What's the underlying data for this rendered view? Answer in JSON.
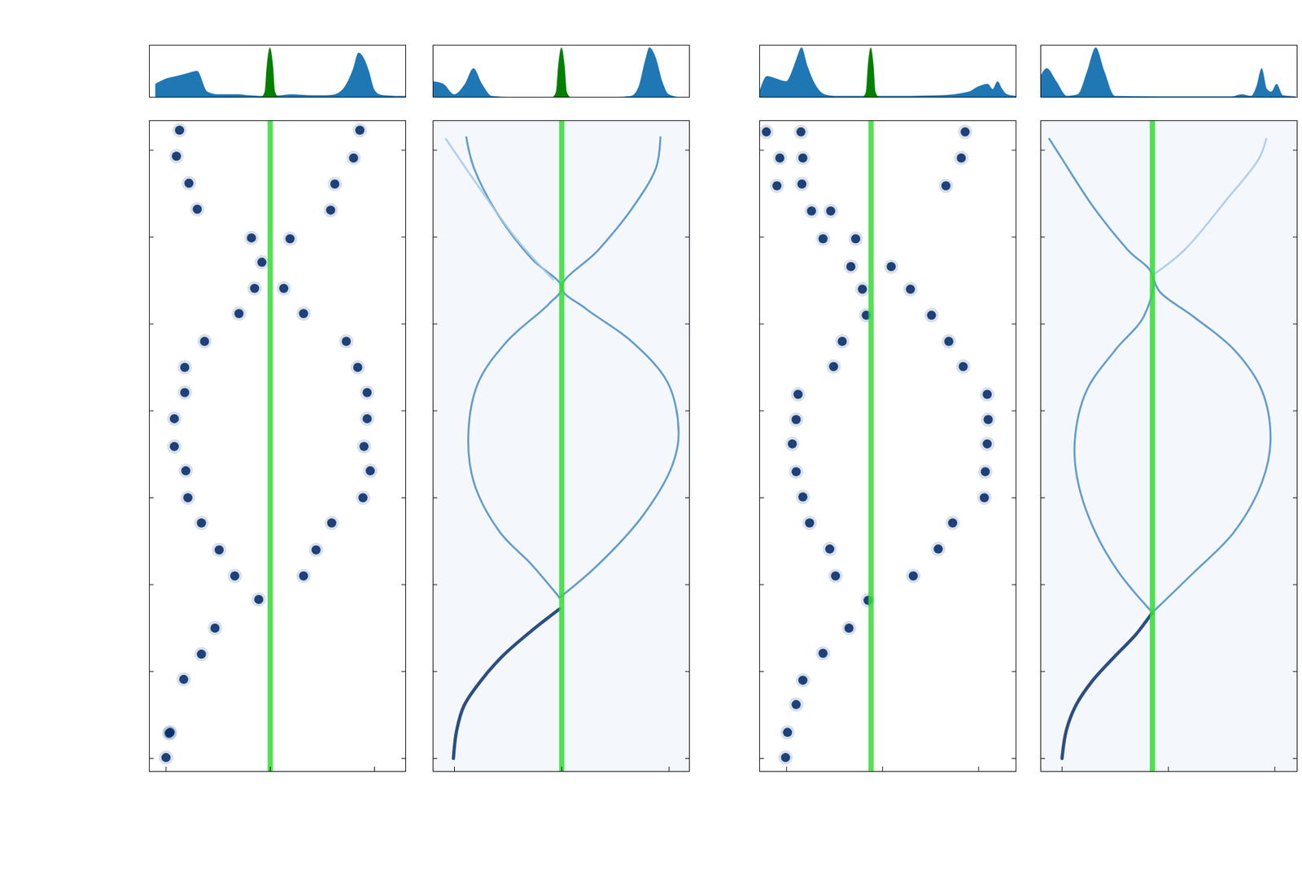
{
  "chart_data": [
    {
      "type": "area",
      "xlim": [
        -1.16,
        1.3
      ],
      "ylim": [
        0,
        1
      ],
      "tick_labels": false,
      "series": [
        {
          "color": "#1f77b4",
          "x": [
            -1.1,
            -1.0,
            -0.9,
            -0.8,
            -0.7,
            -0.6,
            -0.5,
            -0.4,
            -0.3,
            -0.2,
            -0.1,
            0,
            0.1,
            0.2,
            0.3,
            0.4,
            0.5,
            0.6,
            0.7,
            0.8,
            0.85,
            0.9,
            0.95,
            1.0,
            1.05,
            1.1,
            1.2,
            1.3
          ],
          "values": [
            0.25,
            0.35,
            0.4,
            0.45,
            0.5,
            0.1,
            0.05,
            0.05,
            0.05,
            0.03,
            0.02,
            0.02,
            0.03,
            0.05,
            0.04,
            0.03,
            0.03,
            0.04,
            0.15,
            0.55,
            0.85,
            0.75,
            0.5,
            0.15,
            0.05,
            0.03,
            0.02,
            0.02
          ]
        },
        {
          "color": "#008000",
          "x": [
            -0.08,
            -0.05,
            -0.03,
            0,
            0.03,
            0.05,
            0.08
          ],
          "values": [
            0,
            0.1,
            0.6,
            0.95,
            0.6,
            0.1,
            0
          ]
        }
      ]
    },
    {
      "type": "scatter",
      "xlim": [
        -1.16,
        1.3
      ],
      "ylim": [
        -0.15,
        7.34
      ],
      "xticks": [
        -1,
        0,
        1
      ],
      "yticks": [
        0,
        1,
        2,
        3,
        4,
        5,
        6,
        7
      ],
      "tick_labels": false,
      "color": "#08306b",
      "barrier_x": 0,
      "barrier_color": "#33dd33",
      "x": [
        -1.0,
        -0.97,
        -0.96,
        -0.83,
        -0.66,
        -0.53,
        -0.11,
        -0.34,
        -0.49,
        -0.66,
        -0.79,
        -0.81,
        -0.92,
        -0.92,
        -0.82,
        -0.82,
        -0.63,
        -0.3,
        -0.15,
        -0.08,
        -0.18,
        0.19,
        0.13,
        0.32,
        0.32,
        0.44,
        0.59,
        0.89,
        0.96,
        0.9,
        0.93,
        0.93,
        0.84,
        0.73,
        0.58,
        0.62,
        0.8,
        0.86,
        -0.7,
        -0.78,
        -0.87,
        -0.9
      ],
      "y": [
        0.01,
        0.29,
        0.3,
        0.91,
        1.2,
        1.5,
        1.83,
        2.1,
        2.4,
        2.71,
        3.0,
        3.31,
        3.59,
        3.91,
        4.21,
        4.5,
        4.8,
        5.12,
        5.41,
        5.71,
        5.99,
        5.98,
        5.41,
        5.12,
        2.1,
        2.4,
        2.71,
        3.0,
        3.31,
        3.59,
        3.91,
        4.21,
        4.5,
        4.8,
        6.31,
        6.61,
        6.91,
        7.23,
        6.32,
        6.62,
        7.23,
        6.93
      ]
    },
    {
      "type": "area",
      "xlim": [
        -1.2,
        1.19
      ],
      "ylim": [
        0,
        1
      ],
      "tick_labels": false,
      "series": [
        {
          "color": "#1f77b4",
          "x": [
            -1.2,
            -1.1,
            -1.0,
            -0.9,
            -0.82,
            -0.74,
            -0.65,
            -0.5,
            0.5,
            0.65,
            0.72,
            0.78,
            0.82,
            0.88,
            0.94,
            1.0,
            1.1,
            1.19
          ],
          "values": [
            0.3,
            0.25,
            0.05,
            0.25,
            0.55,
            0.25,
            0.02,
            0,
            0,
            0.02,
            0.2,
            0.7,
            0.95,
            0.75,
            0.3,
            0.05,
            0,
            0
          ]
        },
        {
          "color": "#008000",
          "x": [
            -0.08,
            -0.05,
            -0.03,
            0,
            0.03,
            0.05,
            0.08
          ],
          "values": [
            0,
            0.1,
            0.6,
            0.95,
            0.6,
            0.1,
            0
          ]
        }
      ]
    },
    {
      "type": "line",
      "xlim": [
        -1.2,
        1.19
      ],
      "ylim": [
        -0.15,
        7.34
      ],
      "xticks": [
        -1,
        0,
        1
      ],
      "yticks": [
        0,
        1,
        2,
        3,
        4,
        5,
        6,
        7
      ],
      "tick_labels": false,
      "barrier_x": 0,
      "barrier_color": "#33dd33",
      "series": [
        {
          "color": "#08306b",
          "x": [
            -1.01,
            -0.98,
            -0.91,
            -0.75,
            -0.55,
            -0.28,
            -0.02
          ],
          "values": [
            0,
            0.32,
            0.61,
            0.9,
            1.18,
            1.47,
            1.72
          ]
        },
        {
          "color": "#4a8cc4",
          "x": [
            -0.02,
            -0.28,
            -0.58,
            -0.82,
            -0.87,
            -0.78,
            -0.51,
            -0.12,
            0,
            -0.28,
            -0.58,
            -0.82,
            -0.89
          ],
          "values": [
            1.85,
            2.23,
            2.61,
            3.18,
            3.75,
            4.32,
            4.8,
            5.23,
            5.42,
            5.75,
            6.23,
            6.8,
            7.15
          ]
        },
        {
          "color": "#4a8cc4",
          "x": [
            -0.02,
            0.34,
            0.76,
            1.03,
            1.09,
            0.99,
            0.65,
            0.22,
            0,
            0.34,
            0.65,
            0.88,
            0.92
          ],
          "values": [
            1.85,
            2.23,
            2.8,
            3.37,
            3.75,
            4.32,
            4.8,
            5.18,
            5.42,
            5.85,
            6.32,
            6.8,
            7.15
          ]
        },
        {
          "color": "#a6c8e6",
          "x": [
            -0.08,
            -0.43,
            -0.82,
            -1.08
          ],
          "values": [
            5.51,
            5.99,
            6.66,
            7.13
          ]
        }
      ]
    },
    {
      "type": "area",
      "xlim": [
        -1.28,
        1.39
      ],
      "ylim": [
        0,
        1
      ],
      "tick_labels": false,
      "series": [
        {
          "color": "#1f77b4",
          "x": [
            -1.28,
            -1.2,
            -1.1,
            -1.0,
            -0.95,
            -0.9,
            -0.84,
            -0.78,
            -0.7,
            -0.6,
            -0.5,
            -0.3,
            0,
            0.3,
            0.6,
            0.9,
            1.0,
            1.1,
            1.15,
            1.2,
            1.25,
            1.3,
            1.39
          ],
          "values": [
            0.1,
            0.4,
            0.35,
            0.3,
            0.45,
            0.7,
            0.95,
            0.6,
            0.25,
            0.05,
            0.02,
            0.02,
            0.02,
            0.02,
            0.03,
            0.1,
            0.2,
            0.25,
            0.15,
            0.3,
            0.15,
            0.05,
            0.02
          ]
        },
        {
          "color": "#008000",
          "x": [
            -0.2,
            -0.17,
            -0.15,
            -0.12,
            -0.09,
            -0.07,
            -0.04
          ],
          "values": [
            0,
            0.1,
            0.6,
            0.95,
            0.6,
            0.1,
            0
          ]
        }
      ]
    },
    {
      "type": "scatter",
      "xlim": [
        -1.28,
        1.39
      ],
      "ylim": [
        -0.15,
        7.34
      ],
      "xticks": [
        -1,
        0,
        1
      ],
      "yticks": [
        0,
        1,
        2,
        3,
        4,
        5,
        6,
        7
      ],
      "tick_labels": false,
      "color": "#08306b",
      "barrier_x": -0.12,
      "barrier_color": "#33dd33",
      "x": [
        -1.01,
        -0.99,
        -0.9,
        -0.83,
        -0.62,
        -0.35,
        -0.15,
        -0.49,
        -0.55,
        -0.76,
        -0.83,
        -0.9,
        -0.94,
        -0.9,
        -0.88,
        -0.51,
        -0.42,
        -0.17,
        -0.21,
        -0.33,
        -0.62,
        -0.74,
        -0.84,
        -0.83,
        -0.85,
        -1.21,
        0.32,
        0.58,
        0.73,
        1.06,
        1.07,
        1.09,
        1.1,
        1.09,
        0.84,
        0.69,
        0.51,
        0.29,
        0.09,
        -0.28,
        0.66,
        0.82,
        0.86,
        -0.54,
        -1.07,
        -1.1
      ],
      "y": [
        0.01,
        0.3,
        0.62,
        0.9,
        1.21,
        1.5,
        1.82,
        2.1,
        2.41,
        2.71,
        3.01,
        3.3,
        3.62,
        3.9,
        4.19,
        4.51,
        4.8,
        5.1,
        5.4,
        5.66,
        5.98,
        6.3,
        6.61,
        6.91,
        7.21,
        7.21,
        2.1,
        2.41,
        2.71,
        3.0,
        3.3,
        3.62,
        3.9,
        4.19,
        4.51,
        4.8,
        5.1,
        5.4,
        5.66,
        5.98,
        6.59,
        6.91,
        7.21,
        6.3,
        6.91,
        6.59
      ]
    },
    {
      "type": "area",
      "xlim": [
        -1.2,
        1.21
      ],
      "ylim": [
        0,
        1
      ],
      "tick_labels": false,
      "series": [
        {
          "color": "#1f77b4",
          "x": [
            -1.2,
            -1.14,
            -1.05,
            -0.95,
            -0.85,
            -0.76,
            -0.68,
            -0.6,
            -0.5,
            0,
            0.6,
            0.69,
            0.78,
            0.83,
            0.88,
            0.93,
            0.97,
            1.02,
            1.08,
            1.2
          ],
          "values": [
            0.4,
            0.55,
            0.3,
            0.02,
            0.05,
            0.5,
            0.95,
            0.5,
            0.02,
            0.01,
            0.01,
            0.05,
            0.02,
            0.2,
            0.55,
            0.15,
            0.1,
            0.25,
            0.03,
            0.01
          ]
        }
      ]
    },
    {
      "type": "line",
      "xlim": [
        -1.2,
        1.21
      ],
      "ylim": [
        -0.15,
        7.34
      ],
      "xticks": [
        -1,
        0,
        1
      ],
      "yticks": [
        0,
        1,
        2,
        3,
        4,
        5,
        6,
        7
      ],
      "tick_labels": false,
      "barrier_x": -0.15,
      "barrier_color": "#33dd33",
      "series": [
        {
          "color": "#08306b",
          "x": [
            -1.0,
            -0.96,
            -0.87,
            -0.71,
            -0.5,
            -0.31,
            -0.15
          ],
          "values": [
            0,
            0.32,
            0.61,
            0.9,
            1.18,
            1.42,
            1.68
          ]
        },
        {
          "color": "#4a8cc4",
          "x": [
            -0.15,
            -0.46,
            -0.69,
            -0.85,
            -0.88,
            -0.77,
            -0.5,
            -0.23,
            -0.15,
            -0.38,
            -0.69,
            -0.85,
            -1.0,
            -1.12
          ],
          "values": [
            1.68,
            2.13,
            2.61,
            3.18,
            3.66,
            4.23,
            4.7,
            5.09,
            5.56,
            5.85,
            6.32,
            6.61,
            6.9,
            7.13
          ]
        },
        {
          "color": "#4a8cc4",
          "x": [
            -0.15,
            0.23,
            0.62,
            0.88,
            0.96,
            0.88,
            0.62,
            0.23,
            -0.08,
            -0.15
          ],
          "values": [
            1.68,
            2.13,
            2.61,
            3.18,
            3.66,
            4.23,
            4.7,
            5.09,
            5.37,
            5.56
          ]
        },
        {
          "color": "#a6c8e6",
          "x": [
            -0.15,
            0.15,
            0.54,
            0.85,
            0.92
          ],
          "values": [
            5.56,
            5.85,
            6.42,
            6.9,
            7.13
          ]
        }
      ]
    }
  ]
}
